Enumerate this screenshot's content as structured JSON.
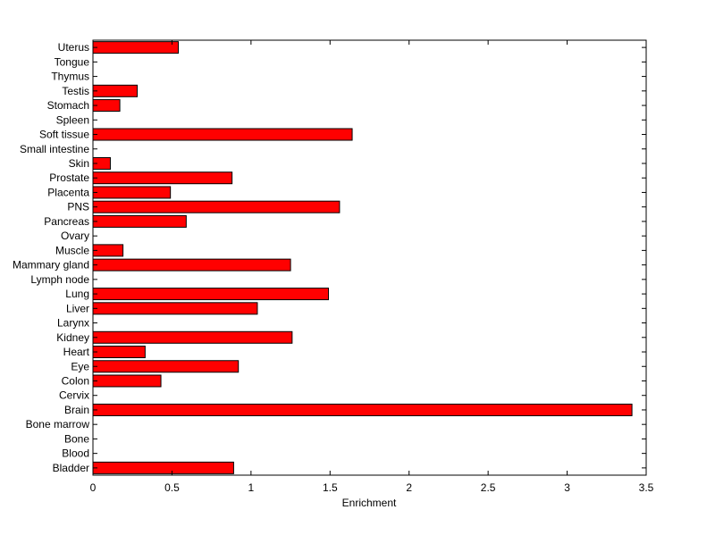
{
  "chart_data": {
    "type": "bar",
    "orientation": "horizontal",
    "categories": [
      "Uterus",
      "Tongue",
      "Thymus",
      "Testis",
      "Stomach",
      "Spleen",
      "Soft tissue",
      "Small intestine",
      "Skin",
      "Prostate",
      "Placenta",
      "PNS",
      "Pancreas",
      "Ovary",
      "Muscle",
      "Mammary gland",
      "Lymph node",
      "Lung",
      "Liver",
      "Larynx",
      "Kidney",
      "Heart",
      "Eye",
      "Colon",
      "Cervix",
      "Brain",
      "Bone marrow",
      "Bone",
      "Blood",
      "Bladder"
    ],
    "values": [
      0.54,
      0,
      0,
      0.28,
      0.17,
      0,
      1.64,
      0,
      0.11,
      0.88,
      0.49,
      1.56,
      0.59,
      0,
      0.19,
      1.25,
      0,
      1.49,
      1.04,
      0,
      1.26,
      0.33,
      0.92,
      0.43,
      0,
      3.41,
      0,
      0,
      0,
      0.89
    ],
    "xlabel": "Enrichment",
    "xlim": [
      0,
      3.5
    ],
    "xticks": [
      "0",
      "0.5",
      "1",
      "1.5",
      "2",
      "2.5",
      "3",
      "3.5"
    ],
    "bar_color": "#ff0000",
    "bar_edge_color": "#000000",
    "grid": false
  }
}
